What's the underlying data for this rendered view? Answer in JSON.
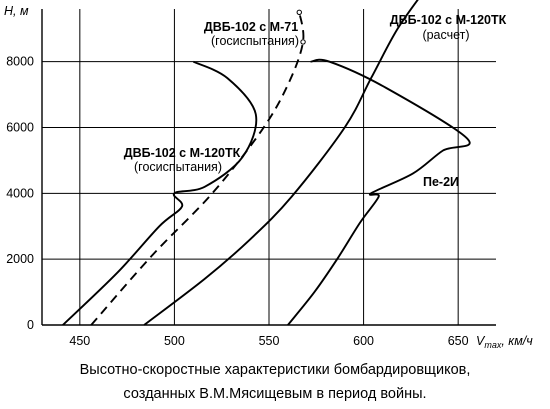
{
  "chart_data": {
    "type": "line",
    "ylabel": "Н, м",
    "xlabel_main": "V",
    "xlabel_sub": "max",
    "xlabel_unit": ", км/ч",
    "xticks": [
      450,
      500,
      550,
      600,
      650
    ],
    "yticks": [
      0,
      2000,
      4000,
      6000,
      8000
    ],
    "xlim": [
      430,
      670
    ],
    "ylim": [
      0,
      9600
    ],
    "grid": true,
    "series": [
      {
        "labels": [
          "ДВБ-102 с М-120ТК",
          "(госиспытания)"
        ],
        "style": "solid",
        "points": [
          [
            441,
            0
          ],
          [
            470,
            1600
          ],
          [
            492,
            3000
          ],
          [
            504,
            3600
          ],
          [
            500,
            4000
          ],
          [
            516,
            4200
          ],
          [
            536,
            5100
          ],
          [
            543,
            6400
          ],
          [
            528,
            7500
          ],
          [
            510,
            8000
          ]
        ]
      },
      {
        "labels": [
          "ДВБ-102 с М-71",
          "(госиспытания)"
        ],
        "style": "dashed",
        "points": [
          [
            456,
            0
          ],
          [
            488,
            2100
          ],
          [
            520,
            4000
          ],
          [
            546,
            5900
          ],
          [
            560,
            7300
          ],
          [
            568,
            8600
          ],
          [
            566,
            9500
          ]
        ]
      },
      {
        "labels": [
          "ДВБ-102 с М-120ТК",
          "(расчет)"
        ],
        "style": "solid",
        "points": [
          [
            484,
            0
          ],
          [
            516,
            1400
          ],
          [
            540,
            2600
          ],
          [
            562,
            3900
          ],
          [
            590,
            6000
          ],
          [
            604,
            7500
          ],
          [
            618,
            9000
          ],
          [
            634,
            10300
          ]
        ]
      },
      {
        "name": "Пе-2И",
        "style": "solid",
        "points": [
          [
            560,
            0
          ],
          [
            574,
            1000
          ],
          [
            586,
            2000
          ],
          [
            598,
            3100
          ],
          [
            608,
            3900
          ],
          [
            604,
            4000
          ],
          [
            626,
            4600
          ],
          [
            642,
            5300
          ],
          [
            655,
            5650
          ],
          [
            612,
            7200
          ],
          [
            582,
            8000
          ],
          [
            572,
            8000
          ]
        ]
      }
    ]
  },
  "caption": {
    "line1": "Высотно-скоростные характеристики бомбардировщиков,",
    "line2": "созданных В.М.Мясищевым в период войны."
  }
}
